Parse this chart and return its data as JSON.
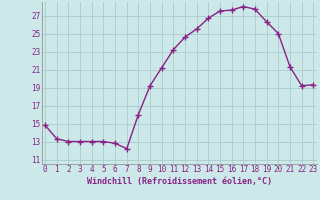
{
  "x": [
    0,
    1,
    2,
    3,
    4,
    5,
    6,
    7,
    8,
    9,
    10,
    11,
    12,
    13,
    14,
    15,
    16,
    17,
    18,
    19,
    20,
    21,
    22,
    23
  ],
  "y": [
    14.8,
    13.3,
    13.0,
    13.0,
    13.0,
    13.0,
    12.8,
    12.2,
    16.0,
    19.2,
    21.2,
    23.2,
    24.6,
    25.5,
    26.7,
    27.5,
    27.6,
    28.0,
    27.7,
    26.3,
    25.0,
    21.3,
    19.2,
    19.3
  ],
  "line_color": "#882288",
  "marker": "+",
  "marker_size": 4,
  "marker_linewidth": 1.0,
  "xlabel": "Windchill (Refroidissement éolien,°C)",
  "xlabel_fontsize": 6.0,
  "ylabel_ticks": [
    11,
    13,
    15,
    17,
    19,
    21,
    23,
    25,
    27
  ],
  "xtick_labels": [
    "0",
    "1",
    "2",
    "3",
    "4",
    "5",
    "6",
    "7",
    "8",
    "9",
    "10",
    "11",
    "12",
    "13",
    "14",
    "15",
    "16",
    "17",
    "18",
    "19",
    "20",
    "21",
    "22",
    "23"
  ],
  "xticks": [
    0,
    1,
    2,
    3,
    4,
    5,
    6,
    7,
    8,
    9,
    10,
    11,
    12,
    13,
    14,
    15,
    16,
    17,
    18,
    19,
    20,
    21,
    22,
    23
  ],
  "xlim": [
    -0.3,
    23.3
  ],
  "ylim": [
    10.5,
    28.5
  ],
  "bg_color": "#cce8e8",
  "grid_color": "#aacccc",
  "tick_fontsize": 5.5,
  "linewidth": 1.0,
  "figure_width": 3.2,
  "figure_height": 2.0,
  "dpi": 100
}
